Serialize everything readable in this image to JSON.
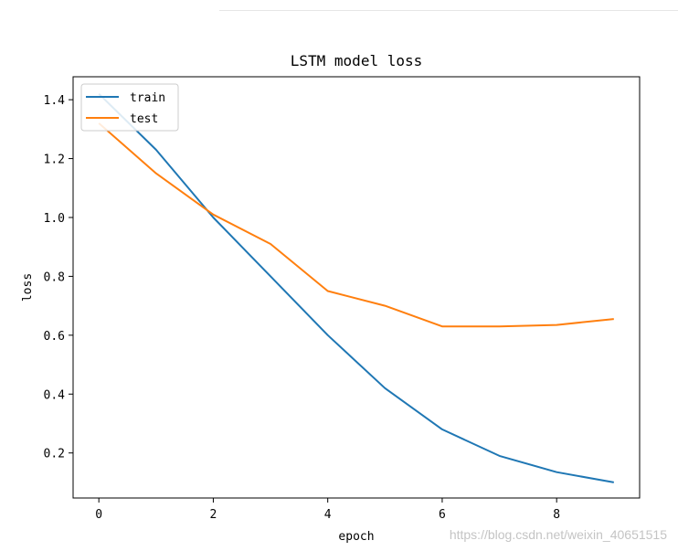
{
  "chart_data": {
    "type": "line",
    "title": "LSTM model loss",
    "xlabel": "epoch",
    "ylabel": "loss",
    "x": [
      0,
      1,
      2,
      3,
      4,
      5,
      6,
      7,
      8,
      9
    ],
    "xlim": [
      -0.45,
      9.45
    ],
    "ylim": [
      0.047,
      1.478
    ],
    "xticks": [
      0,
      2,
      4,
      6,
      8
    ],
    "yticks": [
      0.2,
      0.4,
      0.6,
      0.8,
      1.0,
      1.2,
      1.4
    ],
    "xtick_labels": [
      "0",
      "2",
      "4",
      "6",
      "8"
    ],
    "ytick_labels": [
      "0.2",
      "0.4",
      "0.6",
      "0.8",
      "1.0",
      "1.2",
      "1.4"
    ],
    "grid": false,
    "legend_position": "upper left",
    "series": [
      {
        "name": "train",
        "color": "#1f77b4",
        "values": [
          1.42,
          1.23,
          1.0,
          0.8,
          0.6,
          0.42,
          0.28,
          0.19,
          0.135,
          0.1
        ]
      },
      {
        "name": "test",
        "color": "#ff7f0e",
        "values": [
          1.32,
          1.15,
          1.01,
          0.91,
          0.75,
          0.7,
          0.63,
          0.63,
          0.635,
          0.655
        ]
      }
    ]
  },
  "watermark": "https://blog.csdn.net/weixin_40651515"
}
